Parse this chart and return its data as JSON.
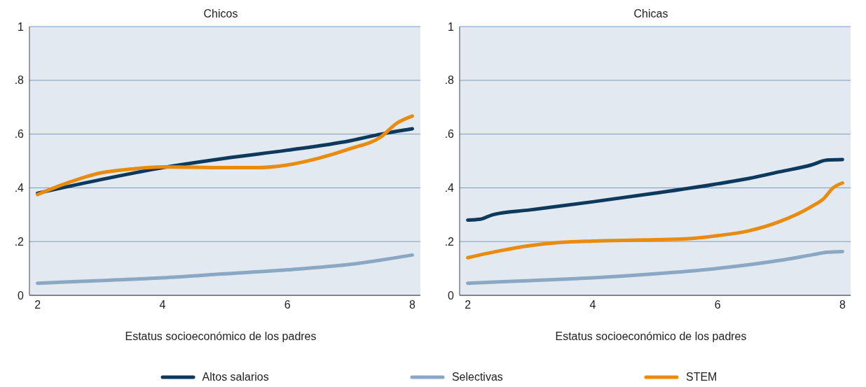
{
  "chart_data": [
    {
      "type": "line",
      "title": "Chicos",
      "xlabel": "Estatus socioeconómico de los padres",
      "xlim": [
        1.87,
        8.13
      ],
      "xticks": [
        2,
        4,
        6,
        8
      ],
      "ylim": [
        0,
        1
      ],
      "yticks": [
        {
          "value": 0,
          "label": "0"
        },
        {
          "value": 0.2,
          "label": ".2"
        },
        {
          "value": 0.4,
          "label": ".4"
        },
        {
          "value": 0.6,
          "label": ".6"
        },
        {
          "value": 0.8,
          "label": ".8"
        },
        {
          "value": 1,
          "label": "1"
        }
      ],
      "grid": "y",
      "legend": "bottom",
      "marker": "none",
      "line_style": "solid",
      "series": [
        {
          "name": "Altos salarios",
          "color": "#0d3a5c",
          "x": [
            2,
            3,
            4,
            5,
            6,
            7,
            7.5,
            8
          ],
          "values": [
            0.38,
            0.43,
            0.475,
            0.51,
            0.54,
            0.575,
            0.6,
            0.62
          ]
        },
        {
          "name": "Selectivas",
          "color": "#8aa8c4",
          "x": [
            2,
            3,
            4,
            5,
            6,
            7,
            8
          ],
          "values": [
            0.045,
            0.055,
            0.065,
            0.08,
            0.095,
            0.115,
            0.15
          ]
        },
        {
          "name": "STEM",
          "color": "#e88b0e",
          "x": [
            2,
            2.5,
            3,
            3.5,
            4,
            5,
            5.5,
            6,
            6.5,
            7,
            7.5,
            7.75,
            8
          ],
          "values": [
            0.375,
            0.42,
            0.455,
            0.47,
            0.478,
            0.475,
            0.475,
            0.485,
            0.51,
            0.545,
            0.59,
            0.64,
            0.667
          ]
        }
      ]
    },
    {
      "type": "line",
      "title": "Chicas",
      "xlabel": "Estatus socioeconómico de los padres",
      "xlim": [
        1.87,
        8.13
      ],
      "xticks": [
        2,
        4,
        6,
        8
      ],
      "ylim": [
        0,
        1
      ],
      "yticks": [
        {
          "value": 0,
          "label": "0"
        },
        {
          "value": 0.2,
          "label": ".2"
        },
        {
          "value": 0.4,
          "label": ".4"
        },
        {
          "value": 0.6,
          "label": ".6"
        },
        {
          "value": 0.8,
          "label": ".8"
        },
        {
          "value": 1,
          "label": "1"
        }
      ],
      "grid": "y",
      "marker": "none",
      "line_style": "solid",
      "series": [
        {
          "color": "#0d3a5c",
          "x": [
            2,
            2.2,
            2.4,
            3,
            4,
            5,
            6,
            6.5,
            7,
            7.5,
            7.75,
            8
          ],
          "values": [
            0.28,
            0.283,
            0.3,
            0.318,
            0.348,
            0.38,
            0.415,
            0.435,
            0.46,
            0.485,
            0.503,
            0.505
          ]
        },
        {
          "color": "#8aa8c4",
          "x": [
            2,
            3,
            4,
            5,
            6,
            7,
            7.5,
            7.75,
            8
          ],
          "values": [
            0.045,
            0.055,
            0.065,
            0.08,
            0.1,
            0.13,
            0.15,
            0.16,
            0.163
          ]
        },
        {
          "color": "#e88b0e",
          "x": [
            2,
            2.5,
            3,
            3.5,
            4,
            5,
            5.5,
            6,
            6.5,
            7,
            7.5,
            7.7,
            7.85,
            8
          ],
          "values": [
            0.14,
            0.165,
            0.185,
            0.197,
            0.202,
            0.207,
            0.21,
            0.222,
            0.24,
            0.275,
            0.33,
            0.36,
            0.4,
            0.418
          ]
        }
      ]
    }
  ]
}
